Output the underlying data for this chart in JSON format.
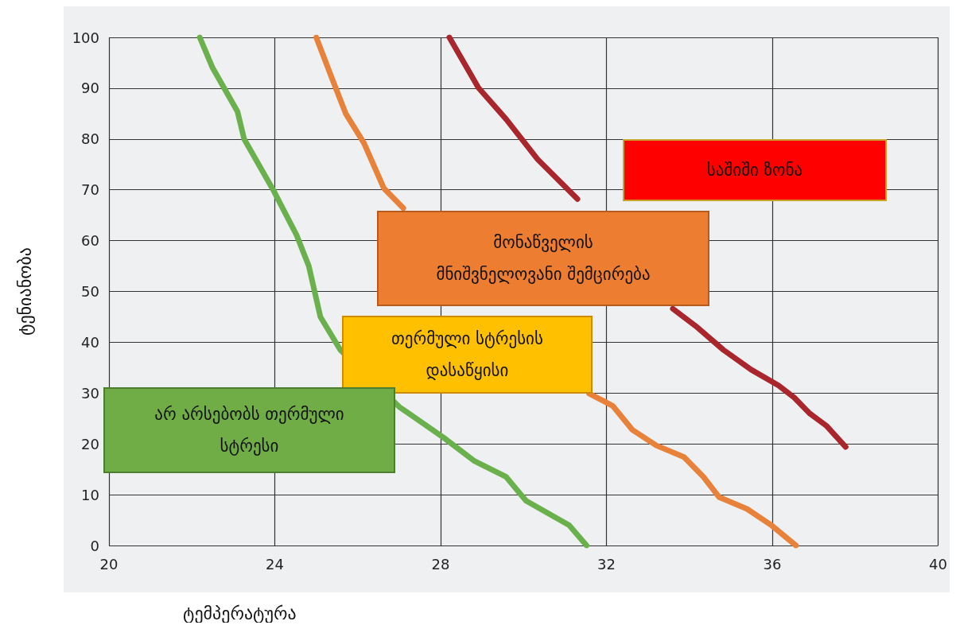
{
  "chart_data": {
    "type": "line",
    "xlabel": "ტემპერატურა",
    "ylabel": "ტენიანობა",
    "series": [
      {
        "color": "#6ab04c",
        "x": [
          22.19,
          22.5,
          23.1,
          23.26,
          23.96,
          24.53,
          24.82,
          25.1,
          25.58,
          27.0,
          28.06,
          28.82,
          29.58,
          30.06,
          31.1,
          31.52
        ],
        "values": [
          100,
          94,
          85.4,
          80,
          70,
          61,
          55,
          45,
          38.5,
          27.3,
          21.3,
          16.6,
          13.5,
          8.8,
          4,
          0
        ]
      },
      {
        "color": "#e8823a",
        "x": [
          25.0,
          25.39,
          25.71,
          26.15,
          26.63,
          27.1,
          29,
          31.58,
          32.15,
          32.62,
          33.2,
          33.87,
          34.34,
          34.72,
          35.39,
          35.96,
          36.57
        ],
        "values": [
          100,
          91.7,
          85,
          79.2,
          70.3,
          66.4,
          null,
          29.9,
          27.5,
          22.8,
          19.7,
          17.4,
          13.5,
          9.5,
          7.2,
          4.1,
          0
        ]
      },
      {
        "color": "#a8262c",
        "x": [
          28.21,
          28.91,
          29.58,
          30.34,
          31.3,
          32.5,
          33.6,
          34.15,
          34.82,
          35.49,
          36.15,
          36.53,
          36.9,
          37.3,
          37.77
        ],
        "values": [
          100,
          90.1,
          83.9,
          76,
          68.2,
          null,
          46.6,
          43.2,
          38.5,
          34.6,
          31.5,
          29.1,
          26,
          23.6,
          19.4
        ]
      }
    ],
    "annotations": [
      "საშიში ზონა",
      "მონაწველის\nმნიშვნელოვანი შემცირება",
      "თერმული სტრესის\nდასაწყისი",
      "არ არსებობს თერმული\nსტრესი"
    ],
    "xlim": [
      20,
      40
    ],
    "xticks": [
      20,
      24,
      28,
      32,
      36,
      40
    ],
    "ylim": [
      0,
      100
    ],
    "yticks": [
      0,
      10,
      20,
      30,
      40,
      50,
      60,
      70,
      80,
      90,
      100
    ],
    "grid": true,
    "marker": "none",
    "line_style": "solid"
  }
}
